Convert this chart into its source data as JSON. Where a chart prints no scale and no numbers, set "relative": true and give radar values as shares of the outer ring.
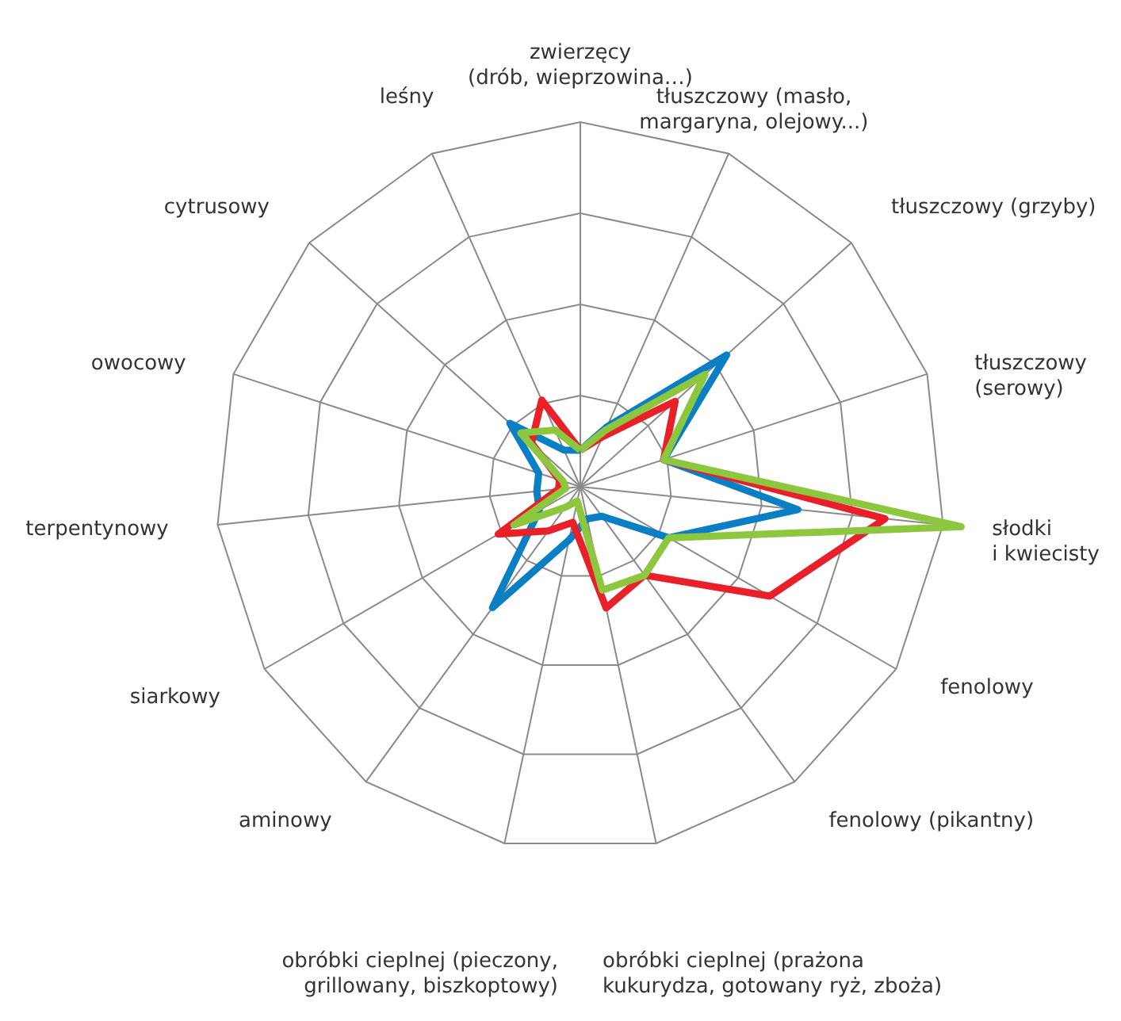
{
  "chart_data": {
    "type": "radar",
    "relative": true,
    "categories": [
      "zwierzęcy\n(drób, wieprzowina…)",
      "tłuszczowy (masło,\nmargaryna, olejowy...)",
      "tłuszczowy (grzyby)",
      "tłuszczowy\n(serowy)",
      "słodki\ni kwiecisty",
      "fenolowy",
      "fenolowy (pikantny)",
      "obróbki cieplnej (prażona\nkukurydza, gotowany ryż, zboża)",
      "obróbki cieplnej (pieczony,\ngrillowany, biszkoptowy)",
      "aminowy",
      "siarkowy",
      "terpentynowy",
      "owocowy",
      "cytrusowy",
      "leśny"
    ],
    "series": [
      {
        "color": "#0a7fc4",
        "values": [
          0.1,
          0.18,
          0.54,
          0.24,
          0.6,
          0.28,
          0.1,
          0.09,
          0.15,
          0.41,
          0.13,
          0.12,
          0.12,
          0.26,
          0.11
        ]
      },
      {
        "color": "#e8202a",
        "values": [
          0.1,
          0.15,
          0.35,
          0.24,
          0.84,
          0.6,
          0.3,
          0.34,
          0.1,
          0.15,
          0.26,
          0.06,
          0.06,
          0.18,
          0.26
        ]
      },
      {
        "color": "#8dc63f",
        "values": [
          0.1,
          0.17,
          0.46,
          0.24,
          1.05,
          0.28,
          0.3,
          0.29,
          0.04,
          0.07,
          0.21,
          0.04,
          0.05,
          0.22,
          0.17
        ]
      }
    ]
  }
}
